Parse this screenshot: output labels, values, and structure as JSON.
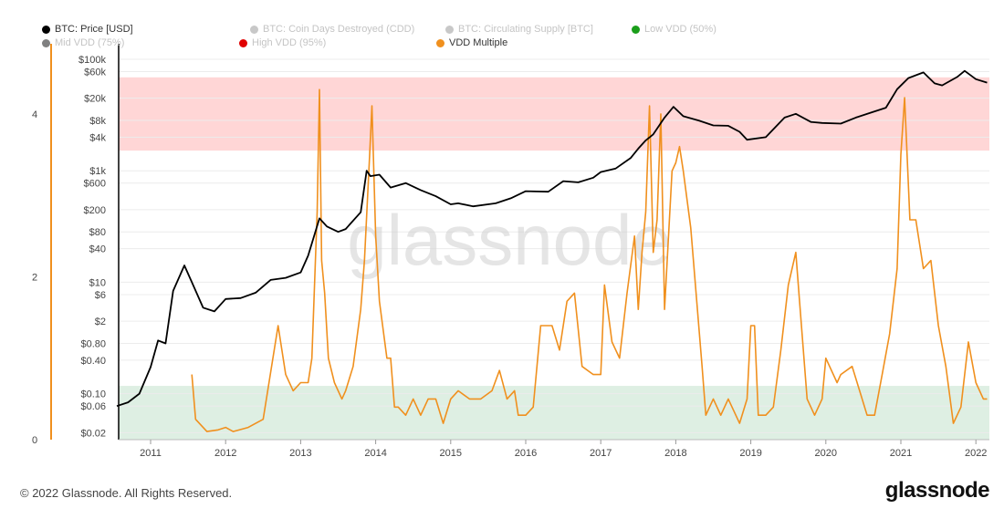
{
  "chart_data": {
    "type": "line",
    "watermark": "glassnode",
    "legend": [
      {
        "label": "BTC: Price [USD]",
        "color": "#000000",
        "active": true
      },
      {
        "label": "BTC: Coin Days Destroyed (CDD)",
        "color": "#c8c8c8",
        "active": false
      },
      {
        "label": "BTC: Circulating Supply [BTC]",
        "color": "#c8c8c8",
        "active": false
      },
      {
        "label": "Low VDD (50%)",
        "color": "#1a9e1a",
        "active": false
      },
      {
        "label": "Mid VDD (75%)",
        "color": "#808080",
        "active": false
      },
      {
        "label": "High VDD (95%)",
        "color": "#e00000",
        "active": false
      },
      {
        "label": "VDD Multiple",
        "color": "#f0901e",
        "active": true
      }
    ],
    "x_ticks": [
      "2011",
      "2012",
      "2013",
      "2014",
      "2015",
      "2016",
      "2017",
      "2018",
      "2019",
      "2020",
      "2021",
      "2022"
    ],
    "left_axis": {
      "ticks": [
        0,
        2,
        4
      ],
      "range": [
        0,
        4.75
      ]
    },
    "price_axis": {
      "scale": "log",
      "ticks": [
        "$0.02",
        "$0.06",
        "$0.10",
        "$0.40",
        "$0.80",
        "$2",
        "$6",
        "$10",
        "$40",
        "$80",
        "$200",
        "$600",
        "$1k",
        "$4k",
        "$8k",
        "$20k",
        "$60k",
        "$100k"
      ],
      "tick_values": [
        0.02,
        0.06,
        0.1,
        0.4,
        0.8,
        2,
        6,
        10,
        40,
        80,
        200,
        600,
        1000,
        4000,
        8000,
        20000,
        60000,
        100000
      ],
      "range": [
        0.015,
        130000
      ]
    },
    "bands": [
      {
        "name": "high",
        "from": 3.55,
        "to": 4.45,
        "color": "#ffd6d6"
      },
      {
        "name": "low",
        "from": 0,
        "to": 0.66,
        "color": "#deefe3"
      }
    ],
    "series": [
      {
        "name": "BTC: Price [USD]",
        "color": "#000000",
        "axis": "price",
        "x": [
          2010.55,
          2010.7,
          2010.85,
          2011.0,
          2011.1,
          2011.2,
          2011.3,
          2011.45,
          2011.55,
          2011.7,
          2011.85,
          2012.0,
          2012.2,
          2012.4,
          2012.6,
          2012.8,
          2013.0,
          2013.1,
          2013.25,
          2013.35,
          2013.5,
          2013.6,
          2013.8,
          2013.88,
          2013.93,
          2014.05,
          2014.2,
          2014.4,
          2014.6,
          2014.8,
          2015.0,
          2015.1,
          2015.3,
          2015.6,
          2015.8,
          2016.0,
          2016.3,
          2016.5,
          2016.7,
          2016.9,
          2017.0,
          2017.2,
          2017.4,
          2017.5,
          2017.6,
          2017.7,
          2017.85,
          2017.97,
          2018.1,
          2018.3,
          2018.5,
          2018.7,
          2018.85,
          2018.95,
          2019.2,
          2019.45,
          2019.6,
          2019.8,
          2019.95,
          2020.2,
          2020.4,
          2020.6,
          2020.8,
          2020.95,
          2021.1,
          2021.3,
          2021.45,
          2021.55,
          2021.75,
          2021.85,
          2022.0,
          2022.15
        ],
        "values": [
          0.06,
          0.07,
          0.1,
          0.3,
          0.9,
          0.8,
          7,
          20,
          10,
          3.5,
          3,
          5,
          5.2,
          6.5,
          11,
          12,
          15,
          30,
          140,
          100,
          80,
          90,
          180,
          1000,
          800,
          850,
          500,
          600,
          450,
          350,
          250,
          260,
          230,
          260,
          320,
          430,
          420,
          650,
          620,
          750,
          950,
          1100,
          1700,
          2500,
          3500,
          4500,
          9000,
          14000,
          9500,
          8000,
          6500,
          6400,
          5000,
          3600,
          4000,
          9000,
          10500,
          7500,
          7200,
          7000,
          9000,
          11000,
          13500,
          29000,
          46000,
          58000,
          37000,
          34000,
          48000,
          62000,
          44000,
          38000
        ]
      },
      {
        "name": "VDD Multiple",
        "color": "#f0901e",
        "axis": "left",
        "x": [
          2011.55,
          2011.6,
          2011.75,
          2011.9,
          2012.0,
          2012.1,
          2012.3,
          2012.5,
          2012.7,
          2012.8,
          2012.9,
          2013.0,
          2013.1,
          2013.15,
          2013.22,
          2013.25,
          2013.28,
          2013.32,
          2013.37,
          2013.45,
          2013.55,
          2013.6,
          2013.7,
          2013.8,
          2013.85,
          2013.92,
          2013.95,
          2014.0,
          2014.05,
          2014.15,
          2014.2,
          2014.25,
          2014.3,
          2014.4,
          2014.5,
          2014.6,
          2014.7,
          2014.8,
          2014.9,
          2015.0,
          2015.1,
          2015.25,
          2015.4,
          2015.55,
          2015.65,
          2015.75,
          2015.85,
          2015.9,
          2016.0,
          2016.1,
          2016.2,
          2016.35,
          2016.45,
          2016.55,
          2016.65,
          2016.75,
          2016.9,
          2017.0,
          2017.05,
          2017.15,
          2017.25,
          2017.35,
          2017.45,
          2017.5,
          2017.55,
          2017.6,
          2017.65,
          2017.7,
          2017.75,
          2017.8,
          2017.85,
          2017.95,
          2018.0,
          2018.05,
          2018.1,
          2018.2,
          2018.35,
          2018.4,
          2018.5,
          2018.6,
          2018.7,
          2018.85,
          2018.95,
          2019.0,
          2019.05,
          2019.1,
          2019.2,
          2019.3,
          2019.4,
          2019.5,
          2019.6,
          2019.65,
          2019.75,
          2019.85,
          2019.95,
          2020.0,
          2020.15,
          2020.2,
          2020.35,
          2020.45,
          2020.55,
          2020.65,
          2020.75,
          2020.85,
          2020.95,
          2021.0,
          2021.05,
          2021.12,
          2021.2,
          2021.3,
          2021.4,
          2021.5,
          2021.6,
          2021.7,
          2021.8,
          2021.9,
          2022.0,
          2022.1,
          2022.15
        ],
        "values": [
          0.8,
          0.25,
          0.1,
          0.12,
          0.15,
          0.1,
          0.15,
          0.25,
          1.4,
          0.8,
          0.6,
          0.7,
          0.7,
          1.0,
          2.8,
          4.3,
          2.2,
          1.8,
          1.0,
          0.7,
          0.5,
          0.6,
          0.9,
          1.6,
          2.2,
          3.5,
          4.1,
          2.5,
          1.7,
          1.0,
          1.0,
          0.4,
          0.4,
          0.3,
          0.5,
          0.3,
          0.5,
          0.5,
          0.2,
          0.5,
          0.6,
          0.5,
          0.5,
          0.6,
          0.85,
          0.5,
          0.6,
          0.3,
          0.3,
          0.4,
          1.4,
          1.4,
          1.1,
          1.7,
          1.8,
          0.9,
          0.8,
          0.8,
          1.9,
          1.2,
          1.0,
          1.8,
          2.5,
          1.6,
          2.3,
          2.8,
          4.1,
          2.3,
          2.7,
          4.0,
          1.6,
          3.3,
          3.4,
          3.6,
          3.3,
          2.6,
          0.9,
          0.3,
          0.5,
          0.3,
          0.5,
          0.2,
          0.5,
          1.4,
          1.4,
          0.3,
          0.3,
          0.4,
          1.1,
          1.9,
          2.3,
          1.7,
          0.5,
          0.3,
          0.5,
          1.0,
          0.7,
          0.8,
          0.9,
          0.6,
          0.3,
          0.3,
          0.8,
          1.3,
          2.1,
          3.5,
          4.2,
          2.7,
          2.7,
          2.1,
          2.2,
          1.4,
          0.9,
          0.2,
          0.4,
          1.2,
          0.7,
          0.5,
          0.5
        ]
      }
    ]
  },
  "footer": {
    "copyright": "© 2022 Glassnode. All Rights Reserved.",
    "logo": "glassnode"
  }
}
